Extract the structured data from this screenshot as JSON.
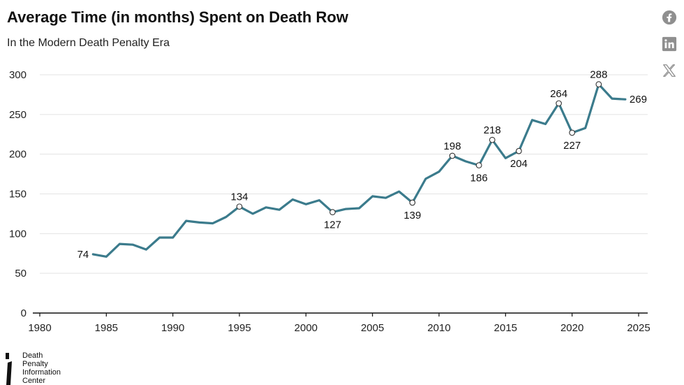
{
  "title": "Average Time (in months) Spent on Death Row",
  "subtitle": "In the Modern Death Penalty Era",
  "share": [
    {
      "name": "facebook-icon",
      "label": "Facebook"
    },
    {
      "name": "linkedin-icon",
      "label": "LinkedIn"
    },
    {
      "name": "x-icon",
      "label": "X"
    }
  ],
  "logo": {
    "lines": [
      "Death",
      "Penalty",
      "Information",
      "Center"
    ]
  },
  "colors": {
    "line": "#3b7b8c",
    "grid": "#e3e3e3",
    "text": "#222222"
  },
  "chart_data": {
    "type": "line",
    "title": "Average Time (in months) Spent on Death Row",
    "subtitle": "In the Modern Death Penalty Era",
    "xlabel": "",
    "ylabel": "",
    "xlim": [
      1980,
      2025
    ],
    "ylim": [
      0,
      300
    ],
    "xticks": [
      1980,
      1985,
      1990,
      1995,
      2000,
      2005,
      2010,
      2015,
      2020,
      2025
    ],
    "yticks": [
      0,
      50,
      100,
      150,
      200,
      250,
      300
    ],
    "grid": true,
    "series": [
      {
        "name": "Average Time (in months)",
        "x": [
          1984,
          1985,
          1986,
          1987,
          1988,
          1989,
          1990,
          1991,
          1992,
          1993,
          1994,
          1995,
          1996,
          1997,
          1998,
          1999,
          2000,
          2001,
          2002,
          2003,
          2004,
          2005,
          2006,
          2007,
          2008,
          2009,
          2010,
          2011,
          2012,
          2013,
          2014,
          2015,
          2016,
          2017,
          2018,
          2019,
          2020,
          2021,
          2022,
          2023,
          2024
        ],
        "values": [
          74,
          71,
          87,
          86,
          80,
          95,
          95,
          116,
          114,
          113,
          121,
          134,
          125,
          133,
          130,
          143,
          137,
          142,
          127,
          131,
          132,
          147,
          145,
          153,
          139,
          169,
          178,
          198,
          191,
          186,
          218,
          195,
          204,
          243,
          238,
          264,
          227,
          233,
          288,
          270,
          269
        ]
      }
    ],
    "annotations": [
      {
        "x": 1984,
        "value": 74,
        "label": "74",
        "position": "left",
        "marker": false
      },
      {
        "x": 1995,
        "value": 134,
        "label": "134",
        "position": "above",
        "marker": true
      },
      {
        "x": 2002,
        "value": 127,
        "label": "127",
        "position": "below",
        "marker": true
      },
      {
        "x": 2008,
        "value": 139,
        "label": "139",
        "position": "below",
        "marker": true
      },
      {
        "x": 2011,
        "value": 198,
        "label": "198",
        "position": "above",
        "marker": true
      },
      {
        "x": 2013,
        "value": 186,
        "label": "186",
        "position": "below",
        "marker": true
      },
      {
        "x": 2014,
        "value": 218,
        "label": "218",
        "position": "above",
        "marker": true
      },
      {
        "x": 2016,
        "value": 204,
        "label": "204",
        "position": "below",
        "marker": true
      },
      {
        "x": 2019,
        "value": 264,
        "label": "264",
        "position": "above",
        "marker": true
      },
      {
        "x": 2020,
        "value": 227,
        "label": "227",
        "position": "below",
        "marker": true
      },
      {
        "x": 2022,
        "value": 288,
        "label": "288",
        "position": "above",
        "marker": true
      },
      {
        "x": 2024,
        "value": 269,
        "label": "269",
        "position": "right",
        "marker": false
      }
    ]
  }
}
